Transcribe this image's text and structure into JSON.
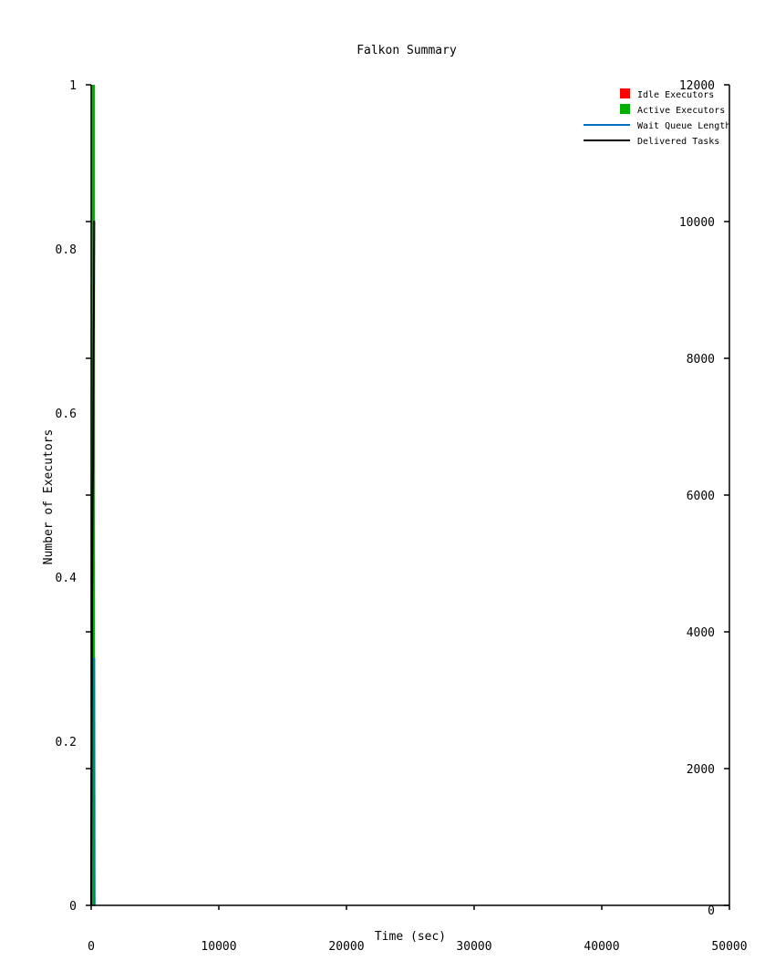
{
  "chart_data": {
    "type": "line",
    "title": "Falkon Summary",
    "xlabel": "Time (sec)",
    "ylabel": "Number of Executors",
    "xlim": [
      0,
      50000
    ],
    "ylim_left": [
      0,
      1
    ],
    "ylim_right": [
      0,
      12000
    ],
    "x_ticks": [
      0,
      10000,
      20000,
      30000,
      40000,
      50000
    ],
    "y_left_ticks": [
      0,
      0.2,
      0.4,
      0.6,
      0.8,
      1
    ],
    "y_right_ticks": [
      0,
      2000,
      4000,
      6000,
      8000,
      10000,
      12000
    ],
    "x_tick_labels": [
      "0",
      "10000",
      "20000",
      "30000",
      "40000",
      "50000"
    ],
    "y_left_tick_labels": [
      "0",
      "0.2",
      "0.4",
      "0.6",
      "0.8",
      "1"
    ],
    "y_right_tick_labels": [
      "0",
      "2000",
      "4000",
      "6000",
      "8000",
      "10000",
      "12000"
    ],
    "legend_position": "top-right",
    "series": [
      {
        "name": "Idle Executors",
        "kind": "area",
        "axis": "left",
        "color": "#ff0000",
        "x": [
          0,
          300
        ],
        "y": [
          0,
          0
        ]
      },
      {
        "name": "Active Executors",
        "kind": "area",
        "axis": "left",
        "color": "#00b000",
        "x": [
          0,
          300
        ],
        "y": [
          1,
          1
        ]
      },
      {
        "name": "Wait Queue Length",
        "kind": "line",
        "axis": "right",
        "color": "#0070c0",
        "x": [
          0,
          30,
          60,
          90,
          120,
          150,
          180,
          210,
          240,
          270,
          300
        ],
        "y": [
          0,
          2000,
          3600,
          3600,
          3600,
          3600,
          3600,
          3600,
          3600,
          0,
          0
        ]
      },
      {
        "name": "Delivered Tasks",
        "kind": "line",
        "axis": "right",
        "color": "#000000",
        "x": [
          0,
          30,
          60,
          90,
          120,
          150,
          180,
          210,
          240,
          270,
          300
        ],
        "y": [
          0,
          2000,
          3900,
          5000,
          6000,
          6400,
          8000,
          8700,
          10000,
          10000,
          10000
        ]
      }
    ]
  }
}
